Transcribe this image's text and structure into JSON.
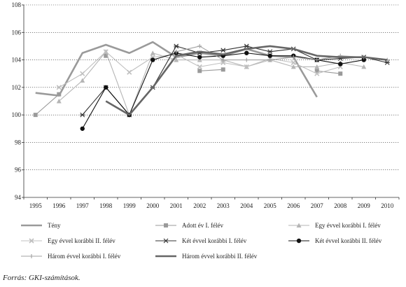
{
  "chart_data": {
    "type": "line",
    "title": "",
    "xlabel": "",
    "ylabel": "",
    "ylim": [
      94,
      108
    ],
    "yticks": [
      94,
      96,
      98,
      100,
      102,
      104,
      106,
      108
    ],
    "categories": [
      "1995",
      "1996",
      "1997",
      "1998",
      "1999",
      "2000",
      "2001",
      "2002",
      "2003",
      "2004",
      "2005",
      "2006",
      "2007",
      "2008",
      "2009",
      "2010"
    ],
    "grid": "horizontal-dotted",
    "legend_position": "bottom",
    "series": [
      {
        "name": "Tény",
        "style": "thick-line",
        "color": "#9a9a9a",
        "marker": "none",
        "values": [
          101.6,
          101.4,
          104.5,
          105.1,
          104.5,
          105.3,
          104.2,
          104.5,
          104.3,
          104.8,
          104.3,
          104.2,
          101.3,
          null,
          null,
          null
        ]
      },
      {
        "name": "Adott év I. félév",
        "style": "line",
        "color": "#9a9a9a",
        "marker": "square",
        "values": [
          100.0,
          101.5,
          null,
          104.3,
          null,
          null,
          null,
          103.2,
          103.3,
          null,
          null,
          null,
          103.2,
          103.0,
          null,
          null
        ]
      },
      {
        "name": "Egy évvel korábbi I. félév",
        "style": "line",
        "color": "#b5b5b5",
        "marker": "triangle",
        "values": [
          null,
          101.0,
          102.5,
          104.6,
          100.0,
          104.5,
          104.0,
          104.0,
          104.0,
          103.5,
          104.0,
          103.5,
          103.5,
          103.8,
          103.5,
          null
        ]
      },
      {
        "name": "Egy évvel korábbi II. félév",
        "style": "line",
        "color": "#c0c0c0",
        "marker": "x",
        "values": [
          null,
          102.0,
          103.0,
          104.6,
          103.1,
          104.2,
          104.4,
          103.5,
          103.8,
          103.5,
          104.1,
          103.8,
          103.0,
          103.5,
          null,
          null
        ]
      },
      {
        "name": "Két évvel korábbi I. félév",
        "style": "line",
        "color": "#333333",
        "marker": "star",
        "values": [
          null,
          null,
          100.0,
          102.0,
          100.0,
          102.0,
          105.0,
          104.5,
          104.7,
          105.0,
          104.6,
          104.8,
          104.0,
          104.1,
          104.2,
          103.8
        ]
      },
      {
        "name": "Két évvel korábbi II. félév",
        "style": "line",
        "color": "#111111",
        "marker": "circle",
        "values": [
          null,
          null,
          99.0,
          102.0,
          100.0,
          104.0,
          104.5,
          104.2,
          104.3,
          104.5,
          104.3,
          104.3,
          104.0,
          103.7,
          104.0,
          null
        ]
      },
      {
        "name": "Három évvel korábbi I. félév",
        "style": "line",
        "color": "#a0a0a0",
        "marker": "plus",
        "values": [
          null,
          null,
          null,
          null,
          null,
          null,
          104.6,
          105.0,
          104.0,
          104.0,
          104.0,
          104.2,
          104.0,
          104.3,
          104.2,
          104.0
        ]
      },
      {
        "name": "Három évvel korábbi II. félév",
        "style": "thick-line",
        "color": "#666666",
        "marker": "none",
        "values": [
          null,
          null,
          null,
          101.0,
          100.0,
          102.0,
          104.3,
          104.6,
          104.4,
          104.8,
          105.0,
          104.8,
          104.3,
          104.2,
          104.2,
          104.0
        ]
      }
    ]
  },
  "source_text": "Forrás: GKI-számítások."
}
